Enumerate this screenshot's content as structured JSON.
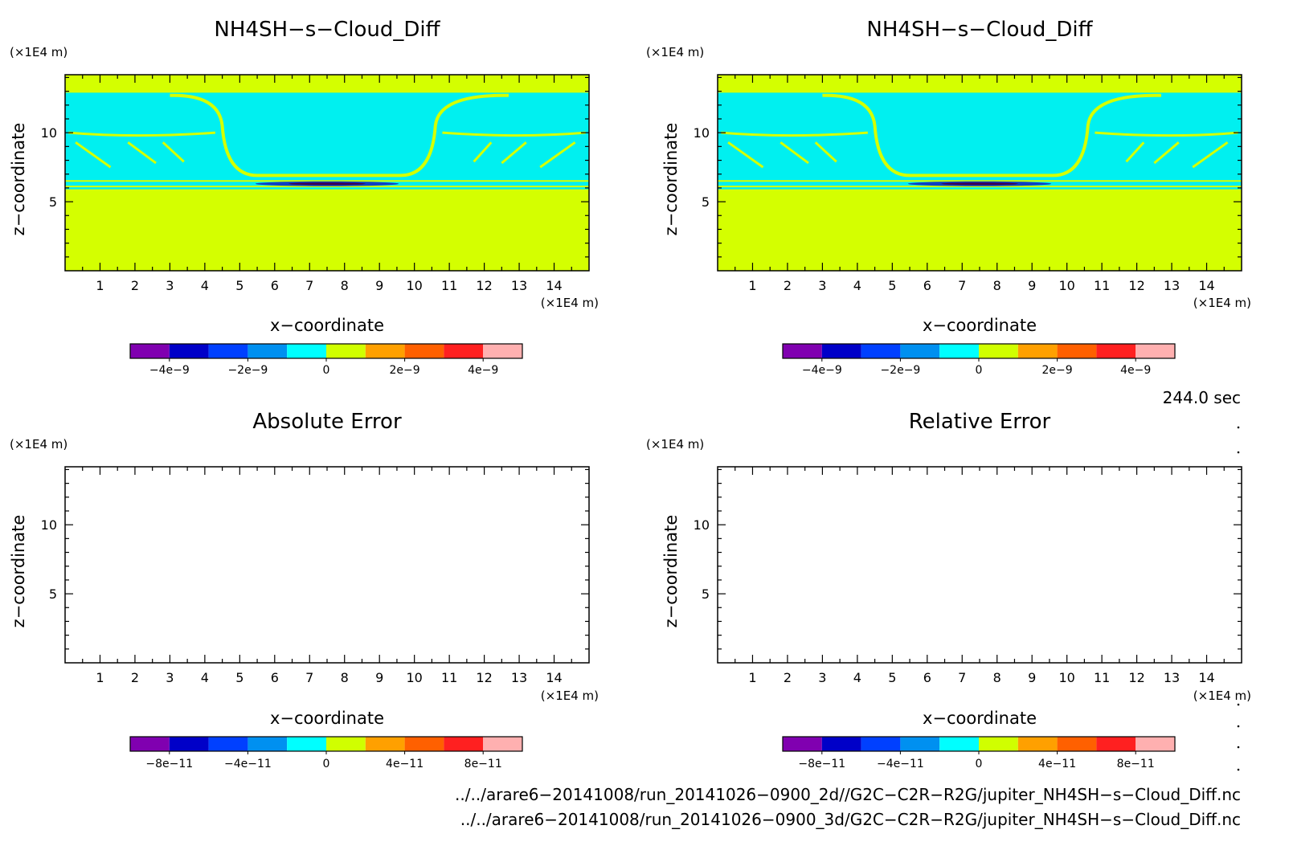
{
  "chart_data": [
    {
      "type": "heatmap",
      "title": "NH4SH−s−Cloud_Diff",
      "xlabel": "x−coordinate",
      "ylabel": "z−coordinate",
      "xunit": "(×1E4 m)",
      "yunit": "(×1E4 m)",
      "xlim": [
        0,
        15
      ],
      "ylim": [
        0,
        14.2
      ],
      "xticks": [
        "1",
        "2",
        "3",
        "4",
        "5",
        "6",
        "7",
        "8",
        "9",
        "10",
        "11",
        "12",
        "13",
        "14"
      ],
      "yticks": [
        "5",
        "10"
      ],
      "colorbar_labels": [
        "−4e−9",
        "−2e−9",
        "0",
        "2e−9",
        "4e−9"
      ],
      "filled": true
    },
    {
      "type": "heatmap",
      "title": "NH4SH−s−Cloud_Diff",
      "xlabel": "x−coordinate",
      "ylabel": "z−coordinate",
      "xunit": "(×1E4 m)",
      "yunit": "(×1E4 m)",
      "xlim": [
        0,
        15
      ],
      "ylim": [
        0,
        14.2
      ],
      "xticks": [
        "1",
        "2",
        "3",
        "4",
        "5",
        "6",
        "7",
        "8",
        "9",
        "10",
        "11",
        "12",
        "13",
        "14"
      ],
      "yticks": [
        "5",
        "10"
      ],
      "colorbar_labels": [
        "−4e−9",
        "−2e−9",
        "0",
        "2e−9",
        "4e−9"
      ],
      "filled": true
    },
    {
      "type": "heatmap",
      "title": "Absolute Error",
      "xlabel": "x−coordinate",
      "ylabel": "z−coordinate",
      "xunit": "(×1E4 m)",
      "yunit": "(×1E4 m)",
      "xlim": [
        0,
        15
      ],
      "ylim": [
        0,
        14.2
      ],
      "xticks": [
        "1",
        "2",
        "3",
        "4",
        "5",
        "6",
        "7",
        "8",
        "9",
        "10",
        "11",
        "12",
        "13",
        "14"
      ],
      "yticks": [
        "5",
        "10"
      ],
      "colorbar_labels": [
        "−8e−11",
        "−4e−11",
        "0",
        "4e−11",
        "8e−11"
      ],
      "filled": false
    },
    {
      "type": "heatmap",
      "title": "Relative Error",
      "xlabel": "x−coordinate",
      "ylabel": "z−coordinate",
      "xunit": "(×1E4 m)",
      "yunit": "(×1E4 m)",
      "xlim": [
        0,
        15
      ],
      "ylim": [
        0,
        14.2
      ],
      "xticks": [
        "1",
        "2",
        "3",
        "4",
        "5",
        "6",
        "7",
        "8",
        "9",
        "10",
        "11",
        "12",
        "13",
        "14"
      ],
      "yticks": [
        "5",
        "10"
      ],
      "colorbar_labels": [
        "−8e−11",
        "−4e−11",
        "0",
        "4e−11",
        "8e−11"
      ],
      "filled": false
    }
  ],
  "colorbar_colors": [
    "#8000b0",
    "#0000c8",
    "#0040ff",
    "#0090f0",
    "#00ffff",
    "#d0ff00",
    "#ffa000",
    "#ff6000",
    "#ff2020",
    "#ffb0b0"
  ],
  "colors": {
    "background": "#d4ff00",
    "cloud": "#00f0f0",
    "contour": "#d4ff00",
    "dark": "#3a0050"
  },
  "time_label": "244.0 sec",
  "footer": [
    "../../arare6−20141008/run_20141026−0900_2d//G2C−C2R−R2G/jupiter_NH4SH−s−Cloud_Diff.nc",
    "../../arare6−20141008/run_20141026−0900_3d/G2C−C2R−R2G/jupiter_NH4SH−s−Cloud_Diff.nc"
  ]
}
